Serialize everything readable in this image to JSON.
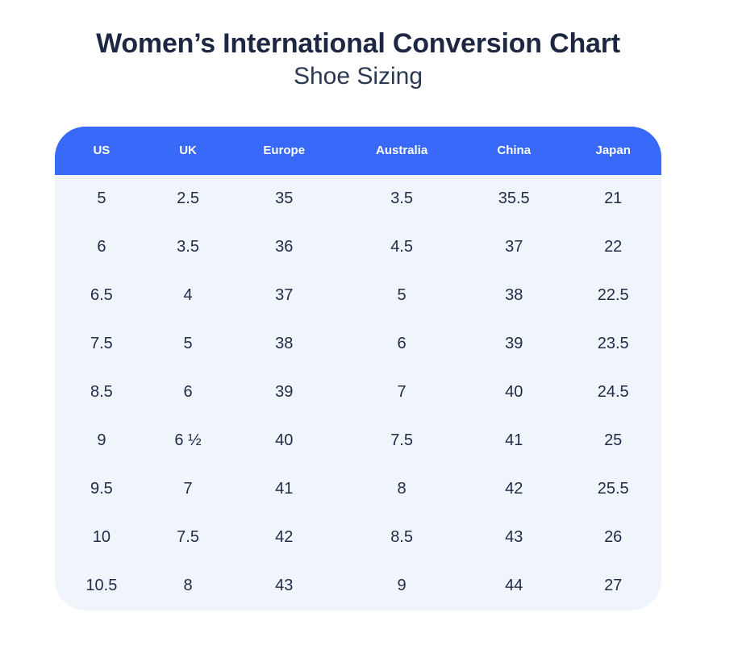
{
  "page": {
    "title": "Women’s International Conversion Chart",
    "subtitle": "Shoe Sizing"
  },
  "colors": {
    "header_bg": "#3969f8",
    "header_text": "#ffffff",
    "body_bg": "#f0f5fc",
    "title_text": "#1e2741",
    "subtitle_text": "#2b3a52",
    "cell_text": "#212c46",
    "page_bg": "#ffffff"
  },
  "chart_data": {
    "type": "table",
    "title": "Women’s International Conversion Chart",
    "subtitle": "Shoe Sizing",
    "columns": [
      "US",
      "UK",
      "Europe",
      "Australia",
      "China",
      "Japan"
    ],
    "rows": [
      [
        "5",
        "2.5",
        "35",
        "3.5",
        "35.5",
        "21"
      ],
      [
        "6",
        "3.5",
        "36",
        "4.5",
        "37",
        "22"
      ],
      [
        "6.5",
        "4",
        "37",
        "5",
        "38",
        "22.5"
      ],
      [
        "7.5",
        "5",
        "38",
        "6",
        "39",
        "23.5"
      ],
      [
        "8.5",
        "6",
        "39",
        "7",
        "40",
        "24.5"
      ],
      [
        "9",
        "6 ½",
        "40",
        "7.5",
        "41",
        "25"
      ],
      [
        "9.5",
        "7",
        "41",
        "8",
        "42",
        "25.5"
      ],
      [
        "10",
        "7.5",
        "42",
        "8.5",
        "43",
        "26"
      ],
      [
        "10.5",
        "8",
        "43",
        "9",
        "44",
        "27"
      ]
    ],
    "layout": {
      "header_position": "top",
      "grid": false,
      "rounded_corners": true
    }
  }
}
